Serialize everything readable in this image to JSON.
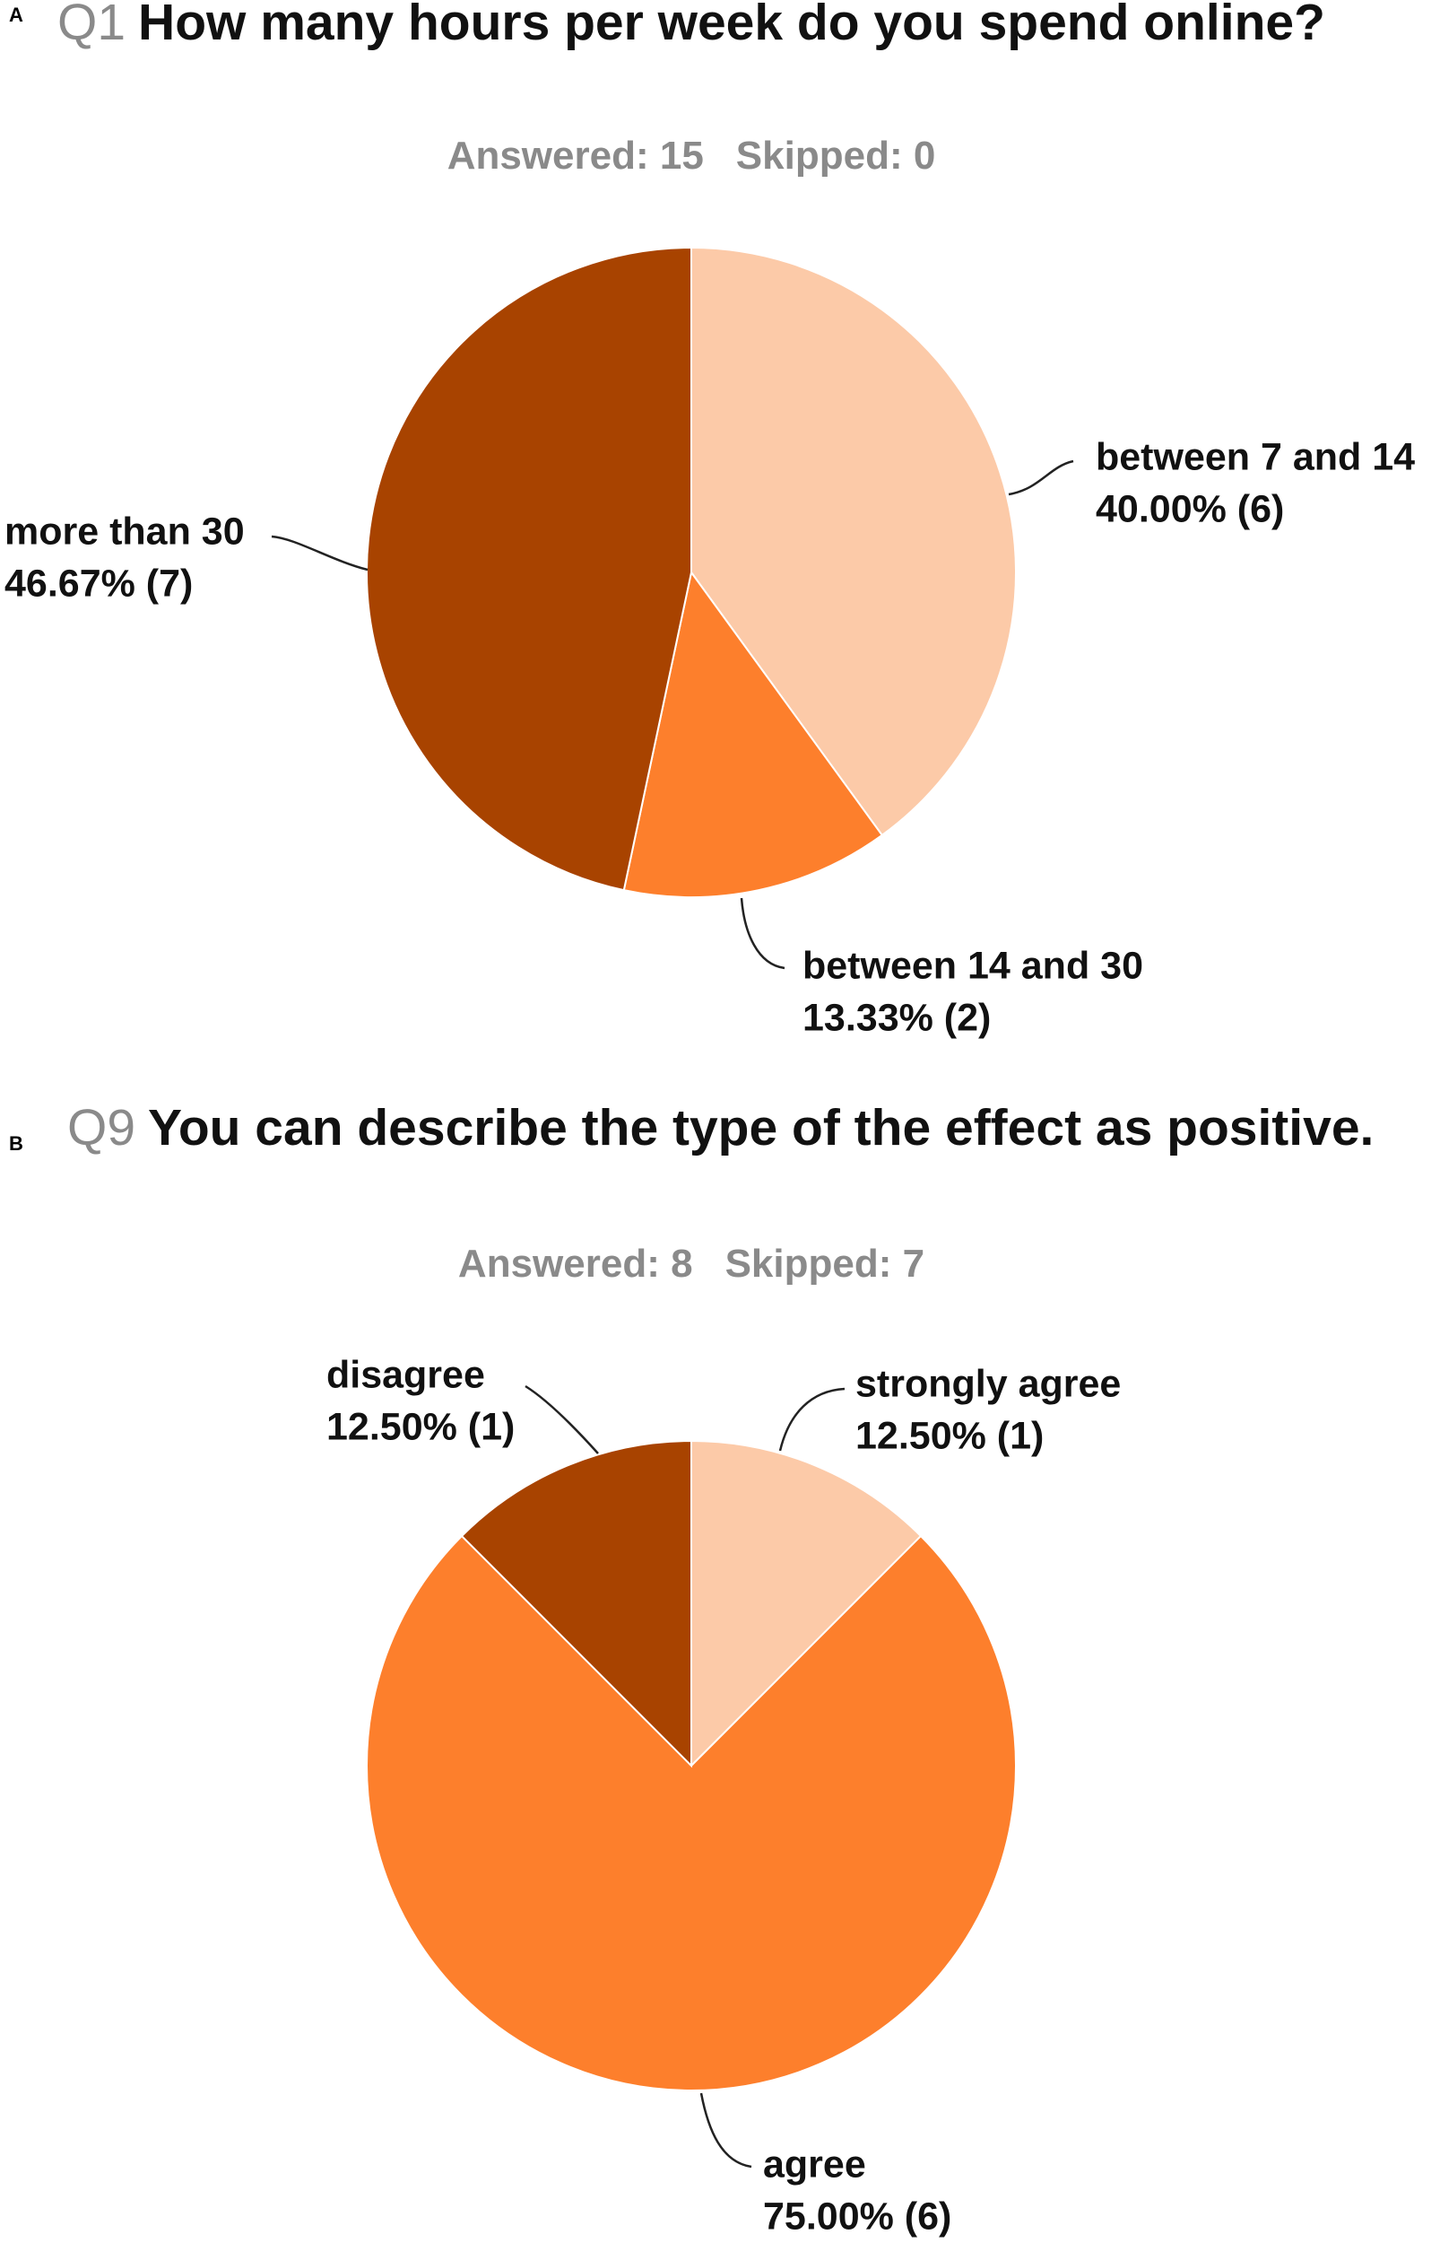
{
  "chart_data": [
    {
      "type": "pie",
      "panel": "A",
      "question": "Q1",
      "title": "How many hours per week do you spend online?",
      "answered": "Answered: 15",
      "skipped": "Skipped: 0",
      "categories": [
        "between 7 and 14",
        "between 14 and 30",
        "more than 30"
      ],
      "values": [
        40.0,
        13.33,
        46.67
      ],
      "value_labels": [
        "40.00% (6)",
        "13.33% (2)",
        "46.67% (7)"
      ],
      "colors": [
        "#fccaa8",
        "#fd7f2c",
        "#a84300"
      ]
    },
    {
      "type": "pie",
      "panel": "B",
      "question": "Q9",
      "title": "You can describe the type of the effect as positive.",
      "answered": "Answered: 8",
      "skipped": "Skipped: 7",
      "categories": [
        "strongly agree",
        "agree",
        "disagree"
      ],
      "values": [
        12.5,
        75.0,
        12.5
      ],
      "value_labels": [
        "12.50% (1)",
        "75.00% (6)",
        "12.50% (1)"
      ],
      "colors": [
        "#fccaa8",
        "#fd7f2c",
        "#a84300"
      ]
    }
  ]
}
